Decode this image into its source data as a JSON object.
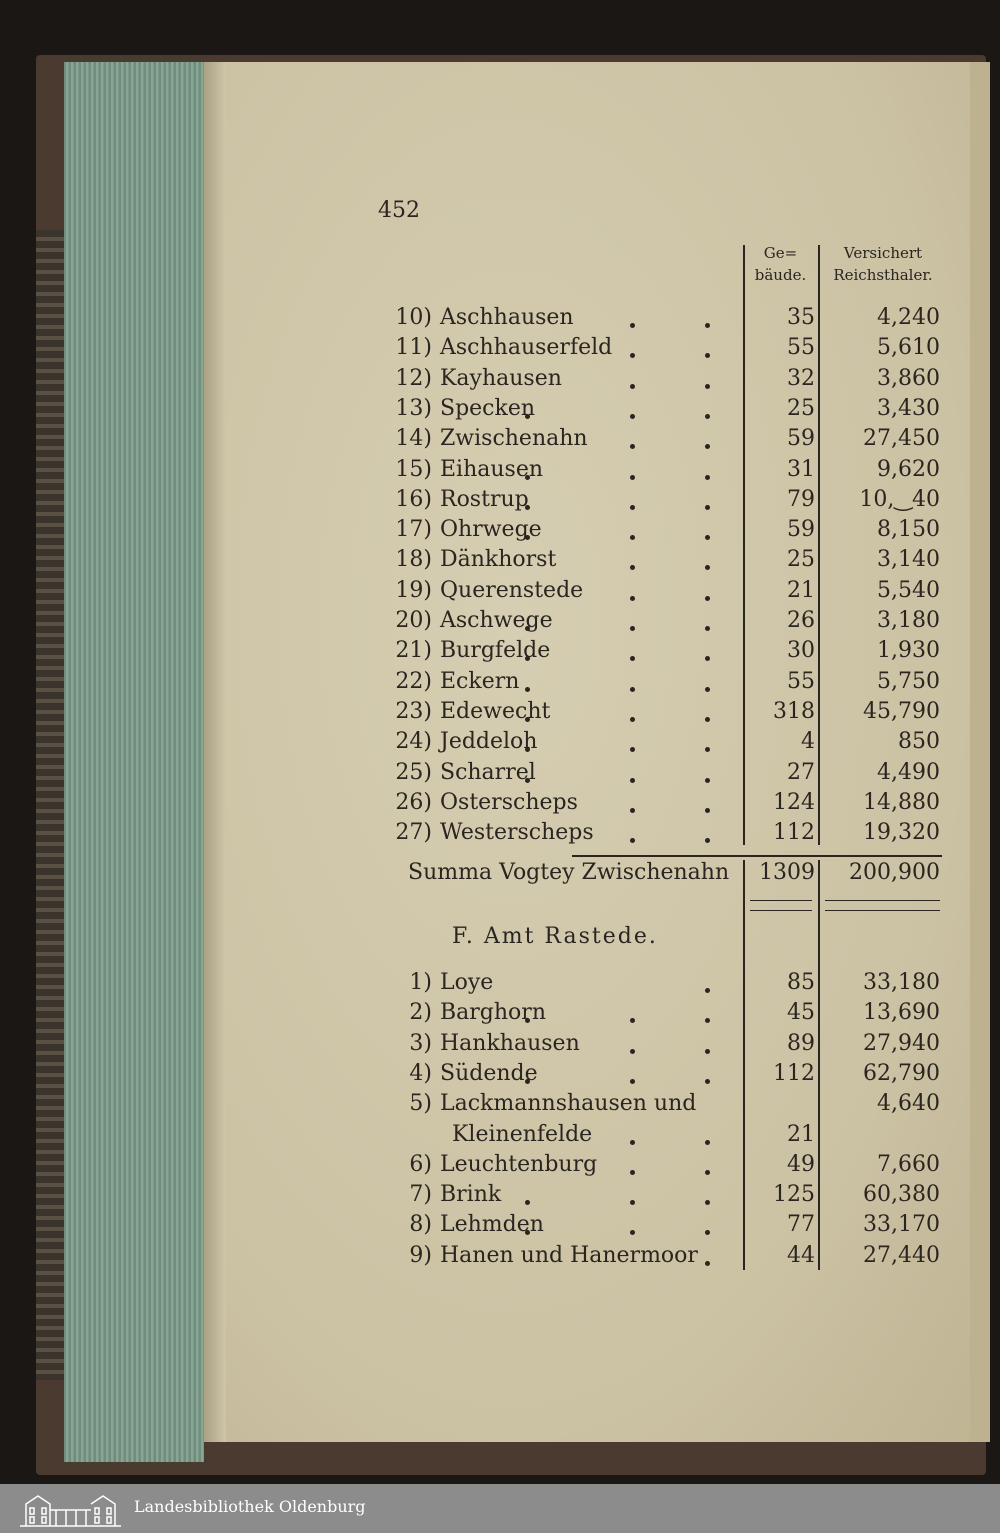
{
  "page_number": "452",
  "header": {
    "gebaude": "Ge-\nbäude.",
    "gebaude_1": "Ge=",
    "gebaude_2": "bäude.",
    "value_1": "Versichert",
    "value_2": "Reichsthaler."
  },
  "rows_a": [
    {
      "n": "10)",
      "name": "Aschhausen",
      "geb": "35",
      "val": "4,240",
      "dots": 2
    },
    {
      "n": "11)",
      "name": "Aschhauserfeld",
      "geb": "55",
      "val": "5,610",
      "dots": 2
    },
    {
      "n": "12)",
      "name": "Kayhausen",
      "geb": "32",
      "val": "3,860",
      "dots": 2
    },
    {
      "n": "13)",
      "name": "Specken",
      "geb": "25",
      "val": "3,430",
      "dots": 3
    },
    {
      "n": "14)",
      "name": "Zwischenahn",
      "geb": "59",
      "val": "27,450",
      "dots": 2
    },
    {
      "n": "15)",
      "name": "Eihausen",
      "geb": "31",
      "val": "9,620",
      "dots": 3
    },
    {
      "n": "16)",
      "name": "Rostrup",
      "geb": "79",
      "val": "10,‿40",
      "dots": 3
    },
    {
      "n": "17)",
      "name": "Ohrwege",
      "geb": "59",
      "val": "8,150",
      "dots": 3
    },
    {
      "n": "18)",
      "name": "Dänkhorst",
      "geb": "25",
      "val": "3,140",
      "dots": 2
    },
    {
      "n": "19)",
      "name": "Querenstede",
      "geb": "21",
      "val": "5,540",
      "dots": 2
    },
    {
      "n": "20)",
      "name": "Aschwege",
      "geb": "26",
      "val": "3,180",
      "dots": 3
    },
    {
      "n": "21)",
      "name": "Burgfelde",
      "geb": "30",
      "val": "1,930",
      "dots": 3
    },
    {
      "n": "22)",
      "name": "Eckern",
      "geb": "55",
      "val": "5,750",
      "dots": 3
    },
    {
      "n": "23)",
      "name": "Edewecht",
      "geb": "318",
      "val": "45,790",
      "dots": 3
    },
    {
      "n": "24)",
      "name": "Jeddeloh",
      "geb": "4",
      "val": "850",
      "dots": 3
    },
    {
      "n": "25)",
      "name": "Scharrel",
      "geb": "27",
      "val": "4,490",
      "dots": 3
    },
    {
      "n": "26)",
      "name": "Osterscheps",
      "geb": "124",
      "val": "14,880",
      "dots": 2
    },
    {
      "n": "27)",
      "name": "Westerscheps",
      "geb": "112",
      "val": "19,320",
      "dots": 2
    }
  ],
  "summa": {
    "label": "Summa Vogtey Zwischenahn",
    "geb": "1309",
    "val": "200,900"
  },
  "section_title": "F. Amt Rastede.",
  "rows_b": [
    {
      "n": "1)",
      "name": "Loye",
      "geb": "85",
      "val": "33,180",
      "dots": 4
    },
    {
      "n": "2)",
      "name": "Barghorn",
      "geb": "45",
      "val": "13,690",
      "dots": 3
    },
    {
      "n": "3)",
      "name": "Hankhausen",
      "geb": "89",
      "val": "27,940",
      "dots": 2
    },
    {
      "n": "4)",
      "name": "Südende",
      "geb": "112",
      "val": "62,790",
      "dots": 3
    },
    {
      "n": "5)",
      "name": "Lackmannshausen und",
      "geb": "",
      "val": "4,640",
      "dots": 0
    },
    {
      "n": "",
      "name": "Kleinenfelde",
      "geb": "21",
      "val": "",
      "dots": 2
    },
    {
      "n": "6)",
      "name": "Leuchtenburg",
      "geb": "49",
      "val": "7,660",
      "dots": 2
    },
    {
      "n": "7)",
      "name": "Brink",
      "geb": "125",
      "val": "60,380",
      "dots": 3
    },
    {
      "n": "8)",
      "name": "Lehmden",
      "geb": "77",
      "val": "33,170",
      "dots": 3
    },
    {
      "n": "9)",
      "name": "Hanen und Hanermoor",
      "geb": "44",
      "val": "27,440",
      "dots": 1
    }
  ],
  "footer": {
    "library": "Landesbibliothek Oldenburg"
  },
  "colors": {
    "paper": "#cfc6a9",
    "ink": "#2a2520",
    "footer": "#8c8c8c",
    "page_edges": "#7a9888"
  }
}
